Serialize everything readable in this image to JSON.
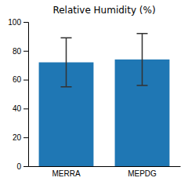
{
  "chart_data": {
    "type": "bar",
    "title": "Relative Humidity (%)",
    "categories": [
      "MERRA",
      "MEPDG"
    ],
    "values": [
      72,
      74
    ],
    "errors": [
      17,
      18
    ],
    "ylim": [
      0,
      100
    ],
    "yticks": [
      0,
      20,
      40,
      60,
      80,
      100
    ],
    "grid": false
  }
}
